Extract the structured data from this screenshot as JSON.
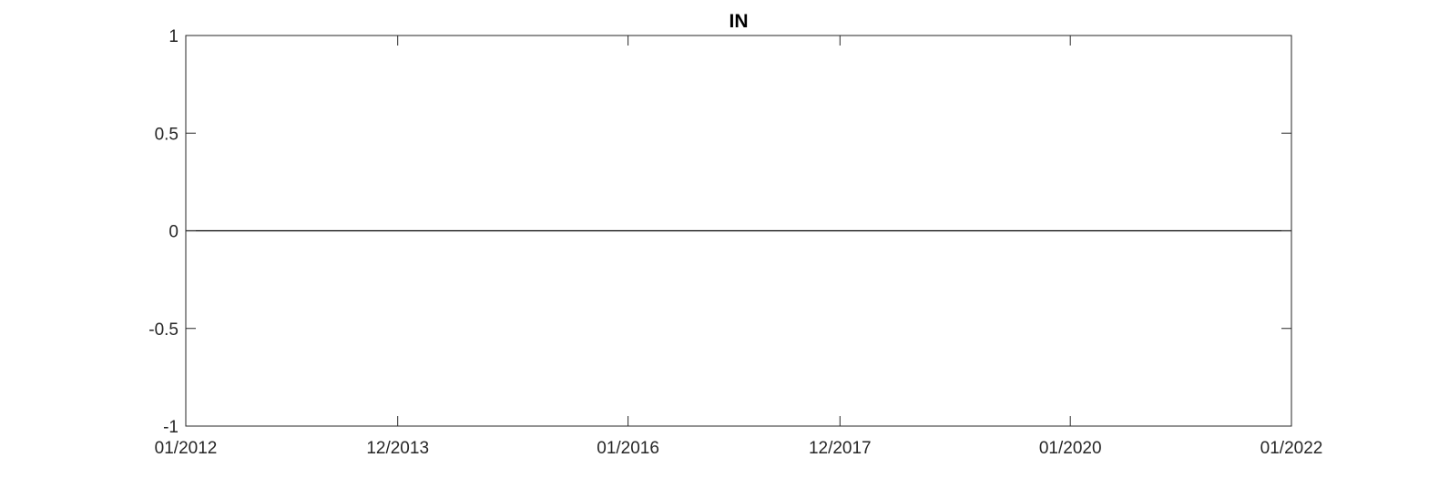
{
  "chart_data": {
    "type": "line",
    "title": "IN",
    "xlabel": "",
    "ylabel": "",
    "x_tick_labels": [
      "01/2012",
      "12/2013",
      "01/2016",
      "12/2017",
      "01/2020",
      "01/2022"
    ],
    "y_ticks": [
      -1,
      -0.5,
      0,
      0.5,
      1
    ],
    "y_tick_labels": [
      "-1",
      "-0.5",
      "0",
      "0.5",
      "1"
    ],
    "ylim": [
      -1,
      1
    ],
    "grid": false,
    "box": true,
    "series": [
      {
        "x": [
          "01/2012",
          "01/2022"
        ],
        "values": [
          0,
          0
        ],
        "color": "#000000"
      }
    ]
  }
}
